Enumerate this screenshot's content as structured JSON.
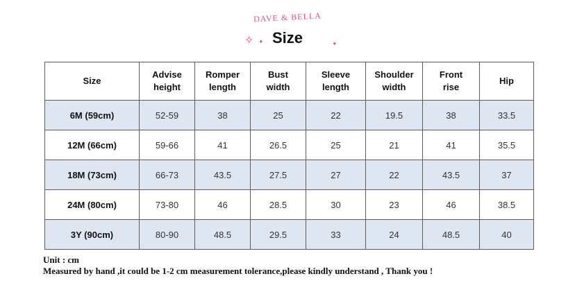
{
  "brand": "DAVE & BELLA",
  "title": "Size",
  "table": {
    "headers": [
      [
        "Size"
      ],
      [
        "Advise",
        "height"
      ],
      [
        "Romper",
        "length"
      ],
      [
        "Bust",
        "width"
      ],
      [
        "Sleeve",
        "length"
      ],
      [
        "Shoulder",
        "width"
      ],
      [
        "Front",
        "rise"
      ],
      [
        "Hip"
      ]
    ],
    "rows": [
      [
        "6M (59cm)",
        "52-59",
        "38",
        "25",
        "22",
        "19.5",
        "38",
        "33.5"
      ],
      [
        "12M (66cm)",
        "59-66",
        "41",
        "26.5",
        "25",
        "21",
        "41",
        "35.5"
      ],
      [
        "18M (73cm)",
        "66-73",
        "43.5",
        "27.5",
        "27",
        "22",
        "43.5",
        "37"
      ],
      [
        "24M (80cm)",
        "73-80",
        "46",
        "28.5",
        "30",
        "23",
        "46",
        "38.5"
      ],
      [
        "3Y (90cm)",
        "80-90",
        "48.5",
        "29.5",
        "33",
        "24",
        "48.5",
        "40"
      ]
    ]
  },
  "notes": {
    "unit": "Unit : cm",
    "measure": "Measured by hand ,it could be 1-2 cm measurement tolerance,please kindly understand , Thank you !"
  },
  "colors": {
    "brand_pink": "#e2518a",
    "row_shade": "#dee6f1"
  }
}
